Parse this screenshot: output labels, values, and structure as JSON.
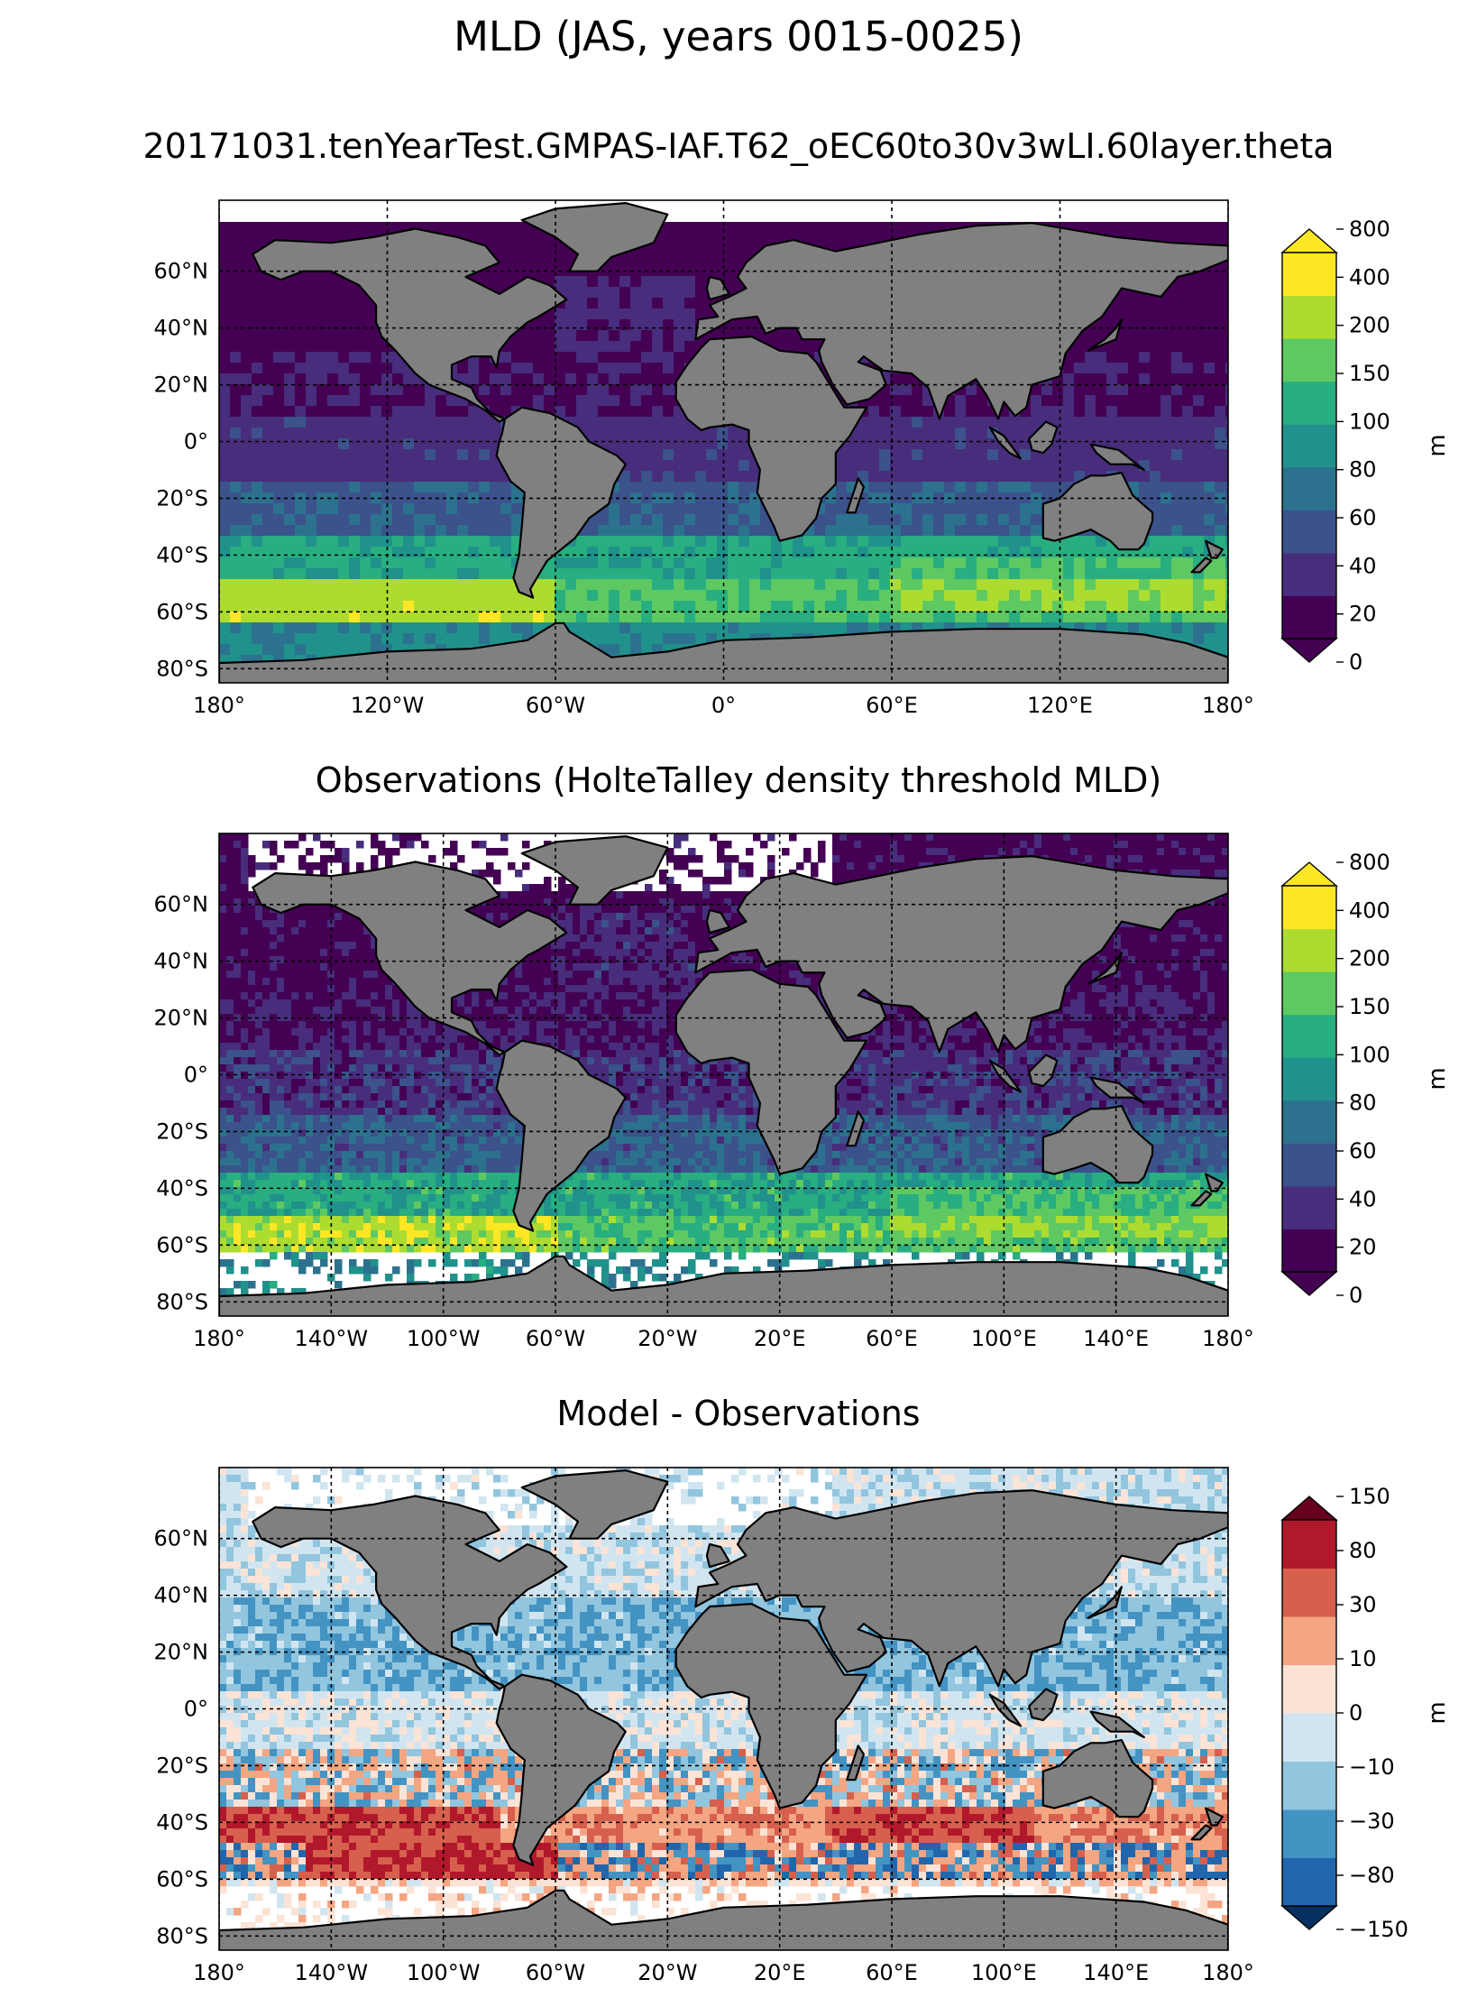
{
  "title": "MLD (JAS, years 0015-0025)",
  "panels": [
    {
      "id": "model",
      "subtitle": "20171031.tenYearTest.GMPAS-IAF.T62_oEC60to30v3wLI.60layer.theta",
      "kind": "mld",
      "lat_labels": [
        "60°N",
        "40°N",
        "20°N",
        "0°",
        "20°S",
        "40°S",
        "60°S",
        "80°S"
      ],
      "lon_labels": [
        "180°",
        "120°W",
        "60°W",
        "0°",
        "60°E",
        "120°E",
        "180°"
      ],
      "colorbar": {
        "unit": "m",
        "levels": [
          "0",
          "20",
          "40",
          "60",
          "80",
          "100",
          "150",
          "200",
          "400",
          "800"
        ],
        "colors": [
          "#440154",
          "#472d7b",
          "#3b528b",
          "#2c728e",
          "#21918c",
          "#28ae80",
          "#5ec962",
          "#addc30",
          "#fde725"
        ]
      }
    },
    {
      "id": "obs",
      "subtitle": "Observations (HolteTalley density threshold MLD)",
      "kind": "mld",
      "lat_labels": [
        "60°N",
        "40°N",
        "20°N",
        "0°",
        "20°S",
        "40°S",
        "60°S",
        "80°S"
      ],
      "lon_labels": [
        "180°",
        "140°W",
        "100°W",
        "60°W",
        "20°W",
        "20°E",
        "60°E",
        "100°E",
        "140°E",
        "180°"
      ],
      "colorbar": {
        "unit": "m",
        "levels": [
          "0",
          "20",
          "40",
          "60",
          "80",
          "100",
          "150",
          "200",
          "400",
          "800"
        ],
        "colors": [
          "#440154",
          "#472d7b",
          "#3b528b",
          "#2c728e",
          "#21918c",
          "#28ae80",
          "#5ec962",
          "#addc30",
          "#fde725"
        ]
      }
    },
    {
      "id": "diff",
      "subtitle": "Model - Observations",
      "kind": "diff",
      "lat_labels": [
        "60°N",
        "40°N",
        "20°N",
        "0°",
        "20°S",
        "40°S",
        "60°S",
        "80°S"
      ],
      "lon_labels": [
        "180°",
        "140°W",
        "100°W",
        "60°W",
        "20°W",
        "20°E",
        "60°E",
        "100°E",
        "140°E",
        "180°"
      ],
      "colorbar": {
        "unit": "m",
        "levels": [
          "−150",
          "−80",
          "−30",
          "−10",
          "0",
          "10",
          "30",
          "80",
          "150"
        ],
        "colors": [
          "#2166ac",
          "#4393c3",
          "#92c5de",
          "#d1e5f0",
          "#fbe3d6",
          "#f4a582",
          "#d6604d",
          "#b2182b"
        ],
        "extend_low": "#053061",
        "extend_high": "#67001f"
      }
    }
  ],
  "colors": {
    "land": "#808080",
    "missing": "#ffffff"
  }
}
